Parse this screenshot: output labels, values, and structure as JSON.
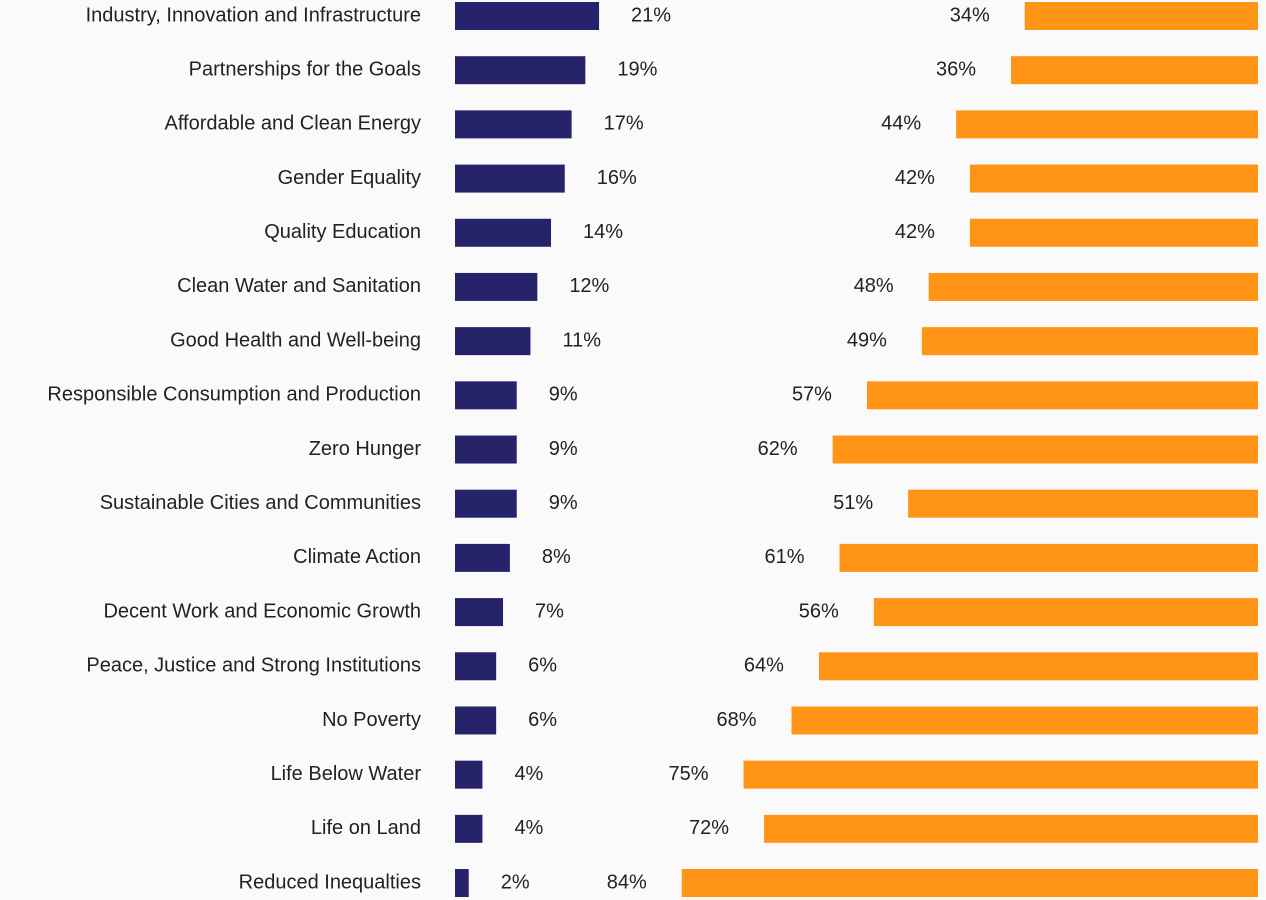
{
  "chart_data": {
    "type": "bar",
    "orientation": "horizontal",
    "categories": [
      "Industry, Innovation and Infrastructure",
      "Partnerships for the Goals",
      "Affordable and Clean Energy",
      "Gender Equality",
      "Quality Education",
      "Clean Water and Sanitation",
      "Good Health and Well-being",
      "Responsible Consumption and Production",
      "Zero Hunger",
      "Sustainable Cities and Communities",
      "Climate Action",
      "Decent Work and Economic Growth",
      "Peace, Justice and Strong Institutions",
      "No Poverty",
      "Life Below Water",
      "Life on Land",
      "Reduced Inequalties"
    ],
    "series": [
      {
        "color": "#27236b",
        "values": [
          21,
          19,
          17,
          16,
          14,
          12,
          11,
          9,
          9,
          9,
          8,
          7,
          6,
          6,
          4,
          4,
          2
        ],
        "value_labels": [
          "21%",
          "19%",
          "17%",
          "16%",
          "14%",
          "12%",
          "11%",
          "9%",
          "9%",
          "9%",
          "8%",
          "7%",
          "6%",
          "6%",
          "4%",
          "4%",
          "2%"
        ]
      },
      {
        "color": "#ff9416",
        "values": [
          34,
          36,
          44,
          42,
          42,
          48,
          49,
          57,
          62,
          51,
          61,
          56,
          64,
          68,
          75,
          72,
          84
        ],
        "value_labels": [
          "34%",
          "36%",
          "44%",
          "42%",
          "42%",
          "48%",
          "49%",
          "57%",
          "62%",
          "51%",
          "61%",
          "56%",
          "64%",
          "68%",
          "75%",
          "72%",
          "84%"
        ]
      }
    ]
  }
}
